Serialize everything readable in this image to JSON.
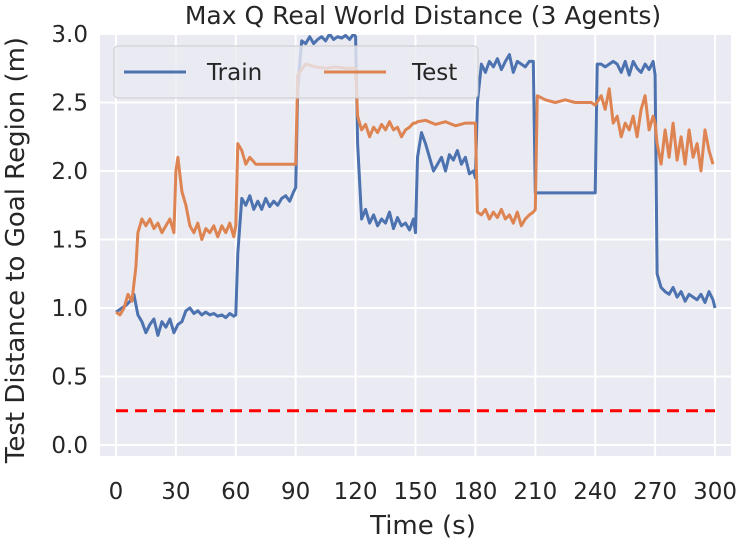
{
  "chart_data": {
    "type": "line",
    "title": "Max Q Real World Distance (3 Agents)",
    "xlabel": "Time (s)",
    "ylabel": "Test Distance to Goal Region (m)",
    "xlim": [
      -8,
      308
    ],
    "ylim": [
      -0.08,
      3.0
    ],
    "xticks": [
      0,
      30,
      60,
      90,
      120,
      150,
      180,
      210,
      240,
      270,
      300
    ],
    "xtick_labels": [
      "0",
      "30",
      "60",
      "90",
      "120",
      "150",
      "180",
      "210",
      "240",
      "270",
      "300"
    ],
    "yticks": [
      0.0,
      0.5,
      1.0,
      1.5,
      2.0,
      2.5,
      3.0
    ],
    "ytick_labels": [
      "0.0",
      "0.5",
      "1.0",
      "1.5",
      "2.0",
      "2.5",
      "3.0"
    ],
    "grid": true,
    "background": "#eaeaf2",
    "legend": {
      "position": "top-left"
    },
    "series": [
      {
        "name": "Train",
        "color": "#4c72b0",
        "x": [
          0,
          3,
          5,
          7,
          9,
          11,
          13,
          15,
          17,
          19,
          21,
          23,
          25,
          27,
          29,
          31,
          33,
          35,
          37,
          39,
          41,
          43,
          45,
          47,
          49,
          51,
          53,
          55,
          57,
          59,
          60,
          61,
          63,
          65,
          67,
          69,
          71,
          73,
          75,
          77,
          79,
          81,
          83,
          85,
          87,
          89,
          90,
          91,
          93,
          95,
          97,
          99,
          101,
          103,
          105,
          107,
          109,
          111,
          113,
          115,
          117,
          119,
          120,
          121,
          123,
          125,
          127,
          129,
          131,
          133,
          135,
          137,
          139,
          141,
          143,
          145,
          147,
          149,
          150,
          151,
          153,
          155,
          157,
          159,
          161,
          163,
          165,
          167,
          169,
          171,
          173,
          175,
          177,
          179,
          180,
          181,
          183,
          185,
          187,
          189,
          191,
          193,
          195,
          197,
          199,
          201,
          203,
          205,
          207,
          209,
          210,
          240,
          241,
          243,
          245,
          247,
          249,
          251,
          253,
          255,
          257,
          259,
          261,
          263,
          265,
          267,
          269,
          270,
          271,
          273,
          275,
          277,
          279,
          281,
          283,
          285,
          287,
          289,
          291,
          293,
          295,
          297,
          299,
          300
        ],
        "values": [
          0.97,
          1.0,
          1.02,
          1.05,
          1.1,
          0.95,
          0.9,
          0.82,
          0.88,
          0.92,
          0.8,
          0.9,
          0.86,
          0.92,
          0.82,
          0.88,
          0.9,
          0.98,
          1.0,
          0.96,
          0.98,
          0.95,
          0.97,
          0.95,
          0.96,
          0.94,
          0.95,
          0.93,
          0.96,
          0.94,
          0.95,
          1.4,
          1.8,
          1.75,
          1.82,
          1.72,
          1.78,
          1.72,
          1.8,
          1.74,
          1.78,
          1.75,
          1.8,
          1.82,
          1.78,
          1.85,
          1.88,
          2.6,
          2.95,
          2.93,
          2.98,
          2.93,
          2.96,
          2.98,
          2.95,
          3.0,
          2.96,
          2.98,
          2.97,
          2.99,
          2.96,
          3.0,
          2.98,
          2.2,
          1.65,
          1.72,
          1.62,
          1.68,
          1.6,
          1.65,
          1.62,
          1.7,
          1.58,
          1.66,
          1.6,
          1.62,
          1.57,
          1.65,
          1.55,
          2.1,
          2.28,
          2.2,
          2.1,
          2.0,
          2.05,
          2.1,
          2.0,
          2.12,
          2.08,
          2.15,
          2.05,
          2.1,
          1.98,
          2.0,
          1.95,
          2.5,
          2.78,
          2.72,
          2.8,
          2.76,
          2.82,
          2.74,
          2.8,
          2.85,
          2.72,
          2.8,
          2.78,
          2.76,
          2.8,
          2.8,
          1.84,
          1.84,
          2.78,
          2.78,
          2.76,
          2.78,
          2.8,
          2.78,
          2.72,
          2.8,
          2.7,
          2.8,
          2.75,
          2.72,
          2.78,
          2.74,
          2.8,
          2.7,
          1.25,
          1.15,
          1.12,
          1.1,
          1.15,
          1.08,
          1.12,
          1.05,
          1.1,
          1.08,
          1.06,
          1.1,
          1.04,
          1.12,
          1.06,
          1.0
        ],
        "style": "solid"
      },
      {
        "name": "Test",
        "color": "#dd8452",
        "x": [
          0,
          2,
          4,
          6,
          8,
          10,
          11,
          13,
          15,
          17,
          19,
          21,
          23,
          25,
          27,
          29,
          30,
          31,
          33,
          35,
          37,
          39,
          41,
          43,
          45,
          47,
          49,
          51,
          53,
          55,
          57,
          59,
          60,
          61,
          63,
          65,
          67,
          70,
          75,
          80,
          85,
          89,
          90,
          91,
          95,
          100,
          105,
          110,
          115,
          119,
          120,
          121,
          123,
          125,
          127,
          129,
          131,
          133,
          135,
          137,
          139,
          141,
          143,
          145,
          147,
          149,
          150,
          151,
          155,
          160,
          165,
          170,
          175,
          179,
          180,
          181,
          183,
          185,
          187,
          189,
          191,
          193,
          195,
          197,
          199,
          201,
          203,
          205,
          207,
          209,
          210,
          211,
          215,
          220,
          225,
          230,
          235,
          238,
          240,
          243,
          245,
          247,
          249,
          251,
          253,
          255,
          257,
          259,
          261,
          263,
          265,
          267,
          269,
          270,
          271,
          273,
          275,
          277,
          279,
          281,
          283,
          285,
          287,
          289,
          291,
          293,
          295,
          297,
          299
        ],
        "values": [
          0.97,
          0.95,
          1.0,
          1.1,
          1.05,
          1.3,
          1.55,
          1.65,
          1.6,
          1.65,
          1.58,
          1.62,
          1.55,
          1.6,
          1.65,
          1.55,
          2.0,
          2.1,
          1.85,
          1.75,
          1.6,
          1.55,
          1.62,
          1.5,
          1.58,
          1.55,
          1.6,
          1.52,
          1.6,
          1.55,
          1.62,
          1.52,
          1.6,
          2.2,
          2.15,
          2.05,
          2.1,
          2.05,
          2.05,
          2.05,
          2.05,
          2.05,
          2.05,
          2.7,
          2.78,
          2.76,
          2.75,
          2.76,
          2.75,
          2.75,
          2.75,
          2.4,
          2.3,
          2.34,
          2.25,
          2.32,
          2.28,
          2.34,
          2.3,
          2.36,
          2.3,
          2.32,
          2.25,
          2.3,
          2.32,
          2.35,
          2.35,
          2.36,
          2.37,
          2.34,
          2.36,
          2.33,
          2.35,
          2.35,
          2.35,
          1.7,
          1.68,
          1.72,
          1.65,
          1.7,
          1.66,
          1.72,
          1.65,
          1.68,
          1.62,
          1.7,
          1.6,
          1.65,
          1.68,
          1.7,
          1.72,
          2.55,
          2.52,
          2.5,
          2.52,
          2.5,
          2.5,
          2.5,
          2.48,
          2.55,
          2.45,
          2.6,
          2.35,
          2.4,
          2.25,
          2.35,
          2.3,
          2.4,
          2.25,
          2.45,
          2.55,
          2.3,
          2.4,
          2.35,
          2.2,
          2.05,
          2.3,
          2.1,
          2.35,
          2.08,
          2.25,
          2.05,
          2.3,
          2.1,
          2.2,
          2.0,
          2.3,
          2.15,
          2.05
        ],
        "style": "solid"
      },
      {
        "color": "#ff0000",
        "x": [
          0,
          300
        ],
        "values": [
          0.25,
          0.25
        ],
        "style": "dashed"
      }
    ]
  }
}
